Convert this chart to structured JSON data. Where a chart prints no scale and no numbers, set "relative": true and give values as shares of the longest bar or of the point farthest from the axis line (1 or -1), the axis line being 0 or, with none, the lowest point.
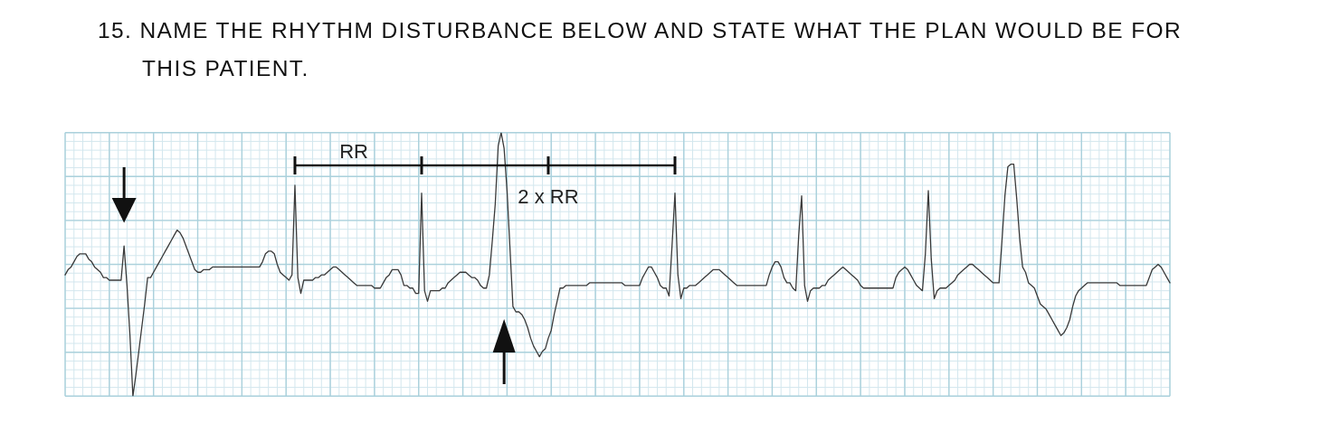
{
  "chart_data": {
    "type": "line",
    "title": "15. NAME THE RHYTHM DISTURBANCE BELOW AND STATE WHAT THE PLAN WOULD BE FOR THIS PATIENT.",
    "annotations": [
      "RR",
      "2 x RR"
    ],
    "relative": true,
    "grid": true,
    "categories": [
      null,
      null,
      null,
      null,
      null,
      null,
      null,
      null,
      null,
      null,
      null,
      null,
      null,
      null,
      null,
      null,
      null,
      null,
      null,
      null,
      null,
      null,
      null,
      null,
      null,
      null,
      null,
      null,
      null,
      null,
      null,
      null,
      null,
      null,
      null,
      null,
      null,
      null,
      null,
      null,
      null,
      null,
      null,
      null,
      null,
      null,
      null,
      null,
      null,
      null,
      null,
      null,
      null,
      null,
      null,
      null,
      null,
      null,
      null,
      null,
      null,
      null,
      null,
      null,
      null,
      null,
      null,
      null,
      null,
      null,
      null,
      null,
      null,
      null,
      null,
      null,
      null,
      null,
      null,
      null,
      null,
      null,
      null,
      null,
      null,
      null,
      null,
      null,
      null,
      null,
      null,
      null,
      null,
      null,
      null,
      null,
      null,
      null,
      null,
      null,
      null,
      null,
      null,
      null,
      null,
      null,
      null,
      null,
      null,
      null,
      null,
      null,
      null,
      null,
      null,
      null,
      null,
      null,
      null,
      null,
      null,
      null,
      null,
      null,
      null,
      null,
      null,
      null,
      null,
      null,
      null,
      null,
      null,
      null,
      null,
      null,
      null,
      null,
      null,
      null,
      null,
      null,
      null,
      null,
      null,
      null,
      null,
      null,
      null,
      null,
      null,
      null,
      null,
      null,
      null,
      null,
      null,
      null,
      null,
      null,
      null,
      null,
      null,
      null,
      null,
      null,
      null,
      null,
      null,
      null,
      null,
      null,
      null,
      null,
      null,
      null,
      null,
      null,
      null,
      null,
      null,
      null,
      null,
      null,
      null,
      null,
      null,
      null,
      null,
      null,
      null,
      null,
      null,
      null,
      null,
      null,
      null,
      null,
      null,
      null,
      null,
      null,
      null,
      null,
      null,
      null,
      null,
      null,
      null,
      null,
      null,
      null,
      null,
      null,
      null,
      null,
      null,
      null,
      null,
      null,
      null,
      null,
      null,
      null,
      null,
      null,
      null,
      null,
      null,
      null,
      null,
      null,
      null,
      null,
      null,
      null,
      null,
      null,
      null,
      null,
      null,
      null,
      null,
      null,
      null,
      null,
      null,
      null,
      null,
      null,
      null,
      null,
      null,
      null,
      null,
      null,
      null,
      null,
      null,
      null,
      null,
      null,
      null,
      null,
      null,
      null,
      null,
      null,
      null,
      null,
      null,
      null,
      null,
      null,
      null,
      null,
      null,
      null,
      null,
      null,
      null,
      null,
      null,
      null,
      null,
      null,
      null,
      null,
      null,
      null,
      null,
      null,
      null,
      null,
      null,
      null,
      null,
      null,
      null,
      null,
      null,
      null,
      null,
      null,
      null,
      null,
      null,
      null,
      null,
      null,
      null,
      null,
      null,
      null,
      null,
      null,
      null,
      null,
      null,
      null,
      null,
      null,
      null,
      null,
      null,
      null,
      null,
      null,
      null,
      null,
      null,
      null,
      null,
      null,
      null,
      null,
      null,
      null,
      null,
      null,
      null,
      null,
      null,
      null,
      null,
      null,
      null,
      null,
      null,
      null,
      null,
      null,
      null,
      null,
      null,
      null,
      null,
      null,
      null,
      null,
      null,
      null,
      null,
      null,
      null,
      null,
      null,
      null,
      null,
      null,
      null,
      null,
      null,
      null,
      null,
      null
    ],
    "series": [
      {
        "color": "#3a3a3a",
        "values": [
          0.46,
          0.48,
          0.49,
          0.51,
          0.53,
          0.54,
          0.54,
          0.54,
          0.52,
          0.51,
          0.49,
          0.48,
          0.47,
          0.45,
          0.45,
          0.44,
          0.44,
          0.44,
          0.44,
          0.44,
          0.57,
          0.42,
          0.23,
          0,
          0.08,
          0.17,
          0.26,
          0.35,
          0.45,
          0.45,
          0.47,
          0.49,
          0.51,
          0.53,
          0.55,
          0.57,
          0.59,
          0.61,
          0.63,
          0.62,
          0.6,
          0.57,
          0.54,
          0.51,
          0.48,
          0.47,
          0.47,
          0.48,
          0.48,
          0.48,
          0.49,
          0.49,
          0.49,
          0.49,
          0.49,
          0.49,
          0.49,
          0.49,
          0.49,
          0.49,
          0.49,
          0.49,
          0.49,
          0.49,
          0.49,
          0.49,
          0.49,
          0.51,
          0.54,
          0.55,
          0.55,
          0.54,
          0.5,
          0.47,
          0.46,
          0.45,
          0.44,
          0.46,
          0.8,
          0.45,
          0.39,
          0.44,
          0.44,
          0.44,
          0.44,
          0.45,
          0.45,
          0.46,
          0.46,
          0.47,
          0.48,
          0.49,
          0.49,
          0.48,
          0.47,
          0.46,
          0.45,
          0.44,
          0.43,
          0.42,
          0.42,
          0.42,
          0.42,
          0.42,
          0.42,
          0.41,
          0.41,
          0.41,
          0.43,
          0.45,
          0.46,
          0.48,
          0.48,
          0.48,
          0.46,
          0.42,
          0.42,
          0.41,
          0.41,
          0.39,
          0.39,
          0.77,
          0.4,
          0.36,
          0.4,
          0.4,
          0.4,
          0.4,
          0.41,
          0.41,
          0.43,
          0.44,
          0.45,
          0.46,
          0.47,
          0.47,
          0.47,
          0.46,
          0.45,
          0.45,
          0.44,
          0.42,
          0.41,
          0.41,
          0.46,
          0.59,
          0.73,
          0.95,
          1,
          0.94,
          0.78,
          0.56,
          0.34,
          0.32,
          0.32,
          0.31,
          0.29,
          0.26,
          0.22,
          0.19,
          0.17,
          0.15,
          0.17,
          0.18,
          0.22,
          0.25,
          0.31,
          0.36,
          0.41,
          0.41,
          0.42,
          0.42,
          0.42,
          0.42,
          0.42,
          0.42,
          0.42,
          0.42,
          0.43,
          0.43,
          0.43,
          0.43,
          0.43,
          0.43,
          0.43,
          0.43,
          0.43,
          0.43,
          0.43,
          0.43,
          0.42,
          0.42,
          0.42,
          0.42,
          0.42,
          0.42,
          0.45,
          0.47,
          0.49,
          0.49,
          0.47,
          0.45,
          0.42,
          0.41,
          0.41,
          0.38,
          0.57,
          0.77,
          0.46,
          0.37,
          0.41,
          0.41,
          0.42,
          0.42,
          0.42,
          0.43,
          0.44,
          0.45,
          0.46,
          0.47,
          0.48,
          0.48,
          0.48,
          0.47,
          0.46,
          0.45,
          0.44,
          0.43,
          0.42,
          0.42,
          0.42,
          0.42,
          0.42,
          0.42,
          0.42,
          0.42,
          0.42,
          0.42,
          0.42,
          0.46,
          0.49,
          0.51,
          0.51,
          0.49,
          0.45,
          0.43,
          0.43,
          0.41,
          0.4,
          0.61,
          0.76,
          0.42,
          0.36,
          0.4,
          0.41,
          0.41,
          0.41,
          0.42,
          0.42,
          0.44,
          0.45,
          0.46,
          0.47,
          0.48,
          0.49,
          0.48,
          0.47,
          0.46,
          0.45,
          0.44,
          0.42,
          0.41,
          0.41,
          0.41,
          0.41,
          0.41,
          0.41,
          0.41,
          0.41,
          0.41,
          0.41,
          0.41,
          0.45,
          0.47,
          0.48,
          0.49,
          0.48,
          0.46,
          0.44,
          0.42,
          0.41,
          0.4,
          0.54,
          0.78,
          0.52,
          0.37,
          0.4,
          0.41,
          0.41,
          0.41,
          0.42,
          0.43,
          0.44,
          0.46,
          0.47,
          0.48,
          0.49,
          0.5,
          0.5,
          0.49,
          0.48,
          0.47,
          0.46,
          0.45,
          0.44,
          0.43,
          0.43,
          0.43,
          0.59,
          0.76,
          0.87,
          0.88,
          0.88,
          0.75,
          0.6,
          0.49,
          0.47,
          0.43,
          0.42,
          0.41,
          0.38,
          0.35,
          0.34,
          0.33,
          0.31,
          0.29,
          0.27,
          0.25,
          0.23,
          0.24,
          0.26,
          0.29,
          0.34,
          0.38,
          0.4,
          0.41,
          0.42,
          0.43,
          0.43,
          0.43,
          0.43,
          0.43,
          0.43,
          0.43,
          0.43,
          0.43,
          0.43,
          0.43,
          0.42,
          0.42,
          0.42,
          0.42,
          0.42,
          0.42,
          0.42,
          0.42,
          0.42,
          0.42,
          0.45,
          0.48,
          0.49,
          0.5,
          0.49,
          0.47,
          0.45,
          0.43
        ]
      }
    ]
  }
}
